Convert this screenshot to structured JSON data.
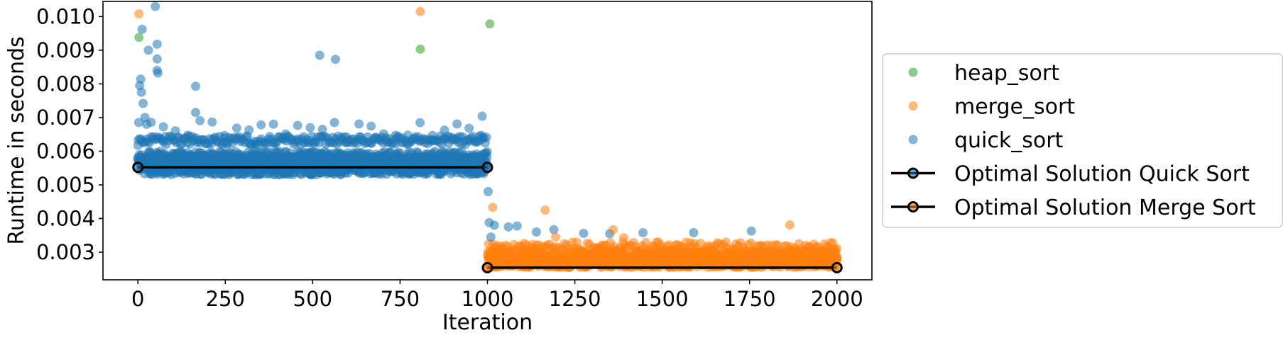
{
  "chart_data": {
    "type": "scatter",
    "xlabel": "Iteration",
    "ylabel": "Runtime in seconds",
    "xlim": [
      -100,
      2100
    ],
    "ylim": [
      0.00218,
      0.01045
    ],
    "xticks": [
      0,
      250,
      500,
      750,
      1000,
      1250,
      1500,
      1750,
      2000
    ],
    "xtick_labels": [
      "0",
      "250",
      "500",
      "750",
      "1000",
      "1250",
      "1500",
      "1750",
      "2000"
    ],
    "yticks": [
      0.003,
      0.004,
      0.005,
      0.006,
      0.007,
      0.008,
      0.009,
      0.01
    ],
    "ytick_labels": [
      "0.003",
      "0.004",
      "0.005",
      "0.006",
      "0.007",
      "0.008",
      "0.009",
      "0.010"
    ],
    "grid": false,
    "legend_position": "right, outside plot",
    "legend": [
      {
        "label": "heap_sort",
        "marker": "point",
        "color": "#2ca02c"
      },
      {
        "label": "merge_sort",
        "marker": "point",
        "color": "#ff7f0e"
      },
      {
        "label": "quick_sort",
        "marker": "point",
        "color": "#1f77b4"
      },
      {
        "label": "Optimal Solution Quick Sort",
        "marker": "line",
        "color": "#1f77b4"
      },
      {
        "label": "Optimal Solution Merge Sort",
        "marker": "line",
        "color": "#ff7f0e"
      }
    ],
    "series": [
      {
        "name": "heap_sort",
        "color": "#2ca02c",
        "points": [
          [
            3,
            0.00938
          ],
          [
            808,
            0.00903
          ],
          [
            1007,
            0.00978
          ]
        ]
      },
      {
        "name": "merge_sort",
        "color": "#ff7f0e",
        "points": [
          [
            3,
            0.01008
          ],
          [
            808,
            0.01015
          ],
          [
            1015,
            0.00433
          ],
          [
            1165,
            0.00425
          ],
          [
            1195,
            0.00345
          ],
          [
            1360,
            0.00367
          ],
          [
            1390,
            0.00343
          ],
          [
            1865,
            0.00381
          ]
        ],
        "cloud": {
          "x_range": [
            1000,
            2000
          ],
          "y_range": [
            0.0025,
            0.0033
          ],
          "typical": 0.0027
        }
      },
      {
        "name": "quick_sort",
        "color": "#1f77b4",
        "points": [
          [
            0,
            0.00617
          ],
          [
            5,
            0.00795
          ],
          [
            8,
            0.00814
          ],
          [
            10,
            0.00775
          ],
          [
            12,
            0.00962
          ],
          [
            15,
            0.00742
          ],
          [
            20,
            0.007
          ],
          [
            25,
            0.0068
          ],
          [
            30,
            0.009
          ],
          [
            50,
            0.0103
          ],
          [
            55,
            0.00918
          ],
          [
            55,
            0.00874
          ],
          [
            55,
            0.0084
          ],
          [
            57,
            0.00832
          ],
          [
            165,
            0.00793
          ],
          [
            165,
            0.00715
          ],
          [
            520,
            0.00885
          ],
          [
            565,
            0.00873
          ],
          [
            985,
            0.00704
          ],
          [
            1002,
            0.0048
          ],
          [
            1005,
            0.00388
          ],
          [
            1010,
            0.00345
          ],
          [
            1020,
            0.0038
          ],
          [
            1060,
            0.00375
          ],
          [
            1085,
            0.00378
          ],
          [
            1140,
            0.0036
          ],
          [
            1190,
            0.00367
          ],
          [
            1275,
            0.00356
          ],
          [
            1350,
            0.00355
          ],
          [
            1445,
            0.00358
          ],
          [
            1590,
            0.00358
          ],
          [
            1755,
            0.00363
          ]
        ],
        "cloud": {
          "x_range": [
            0,
            1000
          ],
          "y_range": [
            0.0052,
            0.0065
          ],
          "bands": [
            0.0055,
            0.0058,
            0.0063
          ]
        }
      }
    ],
    "optimal_lines": [
      {
        "name": "Optimal Solution Quick Sort",
        "x": [
          0,
          1000
        ],
        "y": [
          0.00552,
          0.00552
        ],
        "marker_edge": "#1f77b4"
      },
      {
        "name": "Optimal Solution Merge Sort",
        "x": [
          1000,
          2000
        ],
        "y": [
          0.00254,
          0.00254
        ],
        "marker_edge": "#ff7f0e"
      }
    ]
  }
}
